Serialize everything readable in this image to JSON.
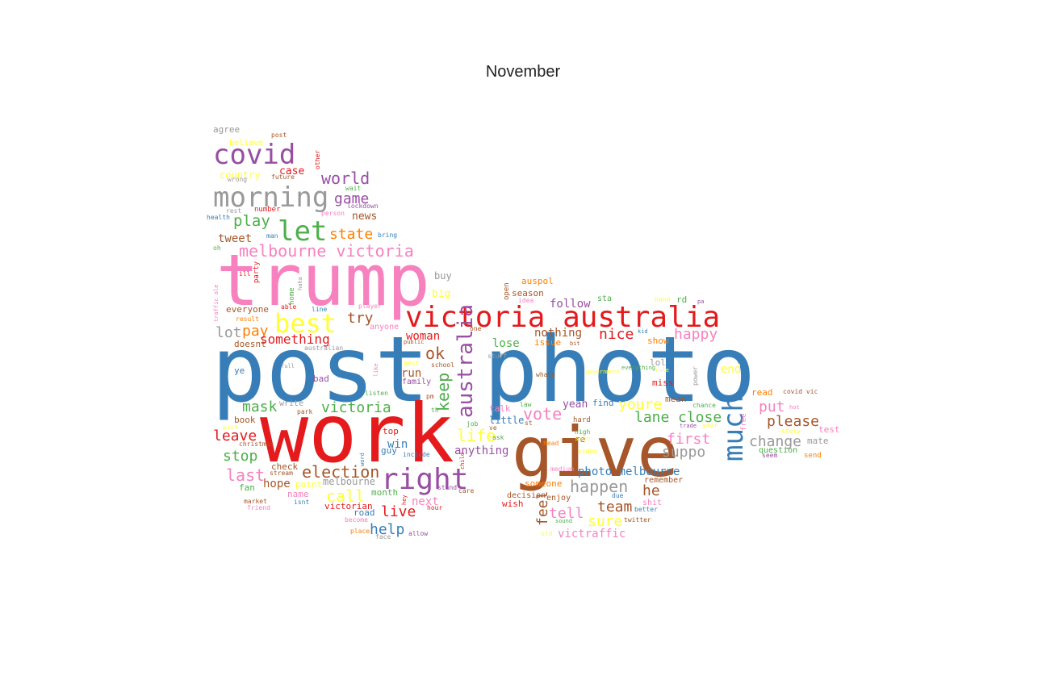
{
  "title": "November",
  "palette": {
    "red": "#e41a1c",
    "blue": "#377eb8",
    "green": "#4daf4a",
    "purple": "#984ea3",
    "orange": "#ff7f00",
    "yellow": "#ffff33",
    "brown": "#a65628",
    "pink": "#f781bf",
    "gray": "#999999"
  },
  "words": [
    {
      "text": "post photo",
      "color": "blue",
      "weight": 100
    },
    {
      "text": "trump",
      "color": "pink",
      "weight": 90
    },
    {
      "text": "work",
      "color": "red",
      "weight": 90
    },
    {
      "text": "give",
      "color": "brown",
      "weight": 80
    },
    {
      "text": "victoria australia",
      "color": "red",
      "weight": 45
    },
    {
      "text": "best",
      "color": "yellow",
      "weight": 40
    },
    {
      "text": "right",
      "color": "purple",
      "weight": 40
    },
    {
      "text": "covid",
      "color": "purple",
      "weight": 40
    },
    {
      "text": "morning",
      "color": "gray",
      "weight": 40
    },
    {
      "text": "let",
      "color": "green",
      "weight": 38
    },
    {
      "text": "much",
      "color": "blue",
      "weight": 36
    },
    {
      "text": "australia",
      "color": "purple",
      "weight": 26
    },
    {
      "text": "melbourne victoria",
      "color": "pink",
      "weight": 20
    },
    {
      "text": "world",
      "color": "purple",
      "weight": 20
    },
    {
      "text": "state",
      "color": "orange",
      "weight": 20
    },
    {
      "text": "play",
      "color": "green",
      "weight": 20
    },
    {
      "text": "game",
      "color": "purple",
      "weight": 18
    },
    {
      "text": "happen",
      "color": "gray",
      "weight": 20
    },
    {
      "text": "election",
      "color": "brown",
      "weight": 20
    },
    {
      "text": "call",
      "color": "yellow",
      "weight": 20
    },
    {
      "text": "victoria",
      "color": "green",
      "weight": 18
    },
    {
      "text": "mask",
      "color": "green",
      "weight": 18
    },
    {
      "text": "leave",
      "color": "red",
      "weight": 18
    },
    {
      "text": "stop",
      "color": "green",
      "weight": 18
    },
    {
      "text": "last",
      "color": "pink",
      "weight": 20
    },
    {
      "text": "try",
      "color": "brown",
      "weight": 18
    },
    {
      "text": "lot",
      "color": "gray",
      "weight": 18
    },
    {
      "text": "pay",
      "color": "orange",
      "weight": 18
    },
    {
      "text": "something",
      "color": "red",
      "weight": 16
    },
    {
      "text": "ok",
      "color": "brown",
      "weight": 20
    },
    {
      "text": "keep",
      "color": "green",
      "weight": 20
    },
    {
      "text": "life",
      "color": "yellow",
      "weight": 20
    },
    {
      "text": "vote",
      "color": "pink",
      "weight": 20
    },
    {
      "text": "close",
      "color": "green",
      "weight": 18
    },
    {
      "text": "lane",
      "color": "green",
      "weight": 18
    },
    {
      "text": "first",
      "color": "pink",
      "weight": 18
    },
    {
      "text": "please",
      "color": "brown",
      "weight": 18
    },
    {
      "text": "change",
      "color": "gray",
      "weight": 18
    },
    {
      "text": "put",
      "color": "pink",
      "weight": 18
    },
    {
      "text": "nice",
      "color": "red",
      "weight": 18
    },
    {
      "text": "happy",
      "color": "pink",
      "weight": 18
    },
    {
      "text": "youre",
      "color": "yellow",
      "weight": 18
    },
    {
      "text": "suppo",
      "color": "gray",
      "weight": 18
    },
    {
      "text": "tell",
      "color": "pink",
      "weight": 18
    },
    {
      "text": "team",
      "color": "brown",
      "weight": 18
    },
    {
      "text": "sure",
      "color": "yellow",
      "weight": 18
    },
    {
      "text": "feel",
      "color": "brown",
      "weight": 18
    },
    {
      "text": "help",
      "color": "blue",
      "weight": 18
    },
    {
      "text": "live",
      "color": "red",
      "weight": 18
    },
    {
      "text": "hope",
      "color": "brown",
      "weight": 14
    },
    {
      "text": "he",
      "color": "brown",
      "weight": 18
    },
    {
      "text": "photo melbourne",
      "color": "blue",
      "weight": 14
    },
    {
      "text": "follow",
      "color": "purple",
      "weight": 14
    },
    {
      "text": "nothing",
      "color": "brown",
      "weight": 14
    },
    {
      "text": "lose",
      "color": "green",
      "weight": 14
    },
    {
      "text": "woman",
      "color": "red",
      "weight": 14
    },
    {
      "text": "run",
      "color": "brown",
      "weight": 14
    },
    {
      "text": "anything",
      "color": "purple",
      "weight": 14
    },
    {
      "text": "victraffic",
      "color": "pink",
      "weight": 14
    },
    {
      "text": "win",
      "color": "blue",
      "weight": 14
    },
    {
      "text": "next",
      "color": "pink",
      "weight": 14
    },
    {
      "text": "tweet",
      "color": "brown",
      "weight": 14
    },
    {
      "text": "news",
      "color": "brown",
      "weight": 13
    },
    {
      "text": "agree",
      "color": "gray",
      "weight": 11
    },
    {
      "text": "believe",
      "color": "yellow",
      "weight": 10
    },
    {
      "text": "country",
      "color": "yellow",
      "weight": 12
    },
    {
      "text": "case",
      "color": "red",
      "weight": 13
    },
    {
      "text": "end",
      "color": "yellow",
      "weight": 14
    },
    {
      "text": "yeah",
      "color": "purple",
      "weight": 13
    },
    {
      "text": "little",
      "color": "blue",
      "weight": 12
    },
    {
      "text": "buy",
      "color": "gray",
      "weight": 12
    },
    {
      "text": "big",
      "color": "yellow",
      "weight": 13
    },
    {
      "text": "auspol",
      "color": "orange",
      "weight": 11
    },
    {
      "text": "season",
      "color": "brown",
      "weight": 11
    },
    {
      "text": "everyone",
      "color": "brown",
      "weight": 11
    },
    {
      "text": "doesnt",
      "color": "brown",
      "weight": 11
    },
    {
      "text": "book",
      "color": "brown",
      "weight": 11
    },
    {
      "text": "fan",
      "color": "green",
      "weight": 11
    },
    {
      "text": "melbourne",
      "color": "gray",
      "weight": 12
    },
    {
      "text": "victorian",
      "color": "red",
      "weight": 11
    },
    {
      "text": "road",
      "color": "blue",
      "weight": 11
    },
    {
      "text": "month",
      "color": "green",
      "weight": 11
    },
    {
      "text": "check",
      "color": "brown",
      "weight": 11
    },
    {
      "text": "name",
      "color": "pink",
      "weight": 11
    },
    {
      "text": "point",
      "color": "yellow",
      "weight": 11
    },
    {
      "text": "read",
      "color": "orange",
      "weight": 11
    },
    {
      "text": "mate",
      "color": "gray",
      "weight": 11
    },
    {
      "text": "test",
      "color": "pink",
      "weight": 11
    },
    {
      "text": "send",
      "color": "orange",
      "weight": 9
    },
    {
      "text": "remember",
      "color": "brown",
      "weight": 10
    },
    {
      "text": "shit",
      "color": "pink",
      "weight": 10
    },
    {
      "text": "someone",
      "color": "orange",
      "weight": 11
    },
    {
      "text": "wish",
      "color": "red",
      "weight": 11
    },
    {
      "text": "miss",
      "color": "red",
      "weight": 11
    },
    {
      "text": "find",
      "color": "blue",
      "weight": 11
    },
    {
      "text": "re",
      "color": "brown",
      "weight": 11
    },
    {
      "text": "mean",
      "color": "brown",
      "weight": 11
    },
    {
      "text": "lol",
      "color": "gray",
      "weight": 11
    },
    {
      "text": "rd",
      "color": "green",
      "weight": 11
    },
    {
      "text": "sta",
      "color": "green",
      "weight": 10
    },
    {
      "text": "issue",
      "color": "orange",
      "weight": 11
    },
    {
      "text": "show",
      "color": "orange",
      "weight": 11
    },
    {
      "text": "family",
      "color": "purple",
      "weight": 10
    },
    {
      "text": "guy",
      "color": "blue",
      "weight": 11
    },
    {
      "text": "bad",
      "color": "purple",
      "weight": 11
    },
    {
      "text": "ye",
      "color": "blue",
      "weight": 11
    },
    {
      "text": "talk",
      "color": "pink",
      "weight": 11
    },
    {
      "text": "post",
      "color": "brown",
      "weight": 8
    },
    {
      "text": "other",
      "color": "red",
      "weight": 8
    },
    {
      "text": "future",
      "color": "brown",
      "weight": 8
    },
    {
      "text": "wrong",
      "color": "gray",
      "weight": 8
    },
    {
      "text": "wait",
      "color": "green",
      "weight": 8
    },
    {
      "text": "lockdown",
      "color": "purple",
      "weight": 8
    },
    {
      "text": "rest",
      "color": "gray",
      "weight": 8
    },
    {
      "text": "number",
      "color": "red",
      "weight": 9
    },
    {
      "text": "person",
      "color": "pink",
      "weight": 8
    },
    {
      "text": "health",
      "color": "blue",
      "weight": 8
    },
    {
      "text": "man",
      "color": "blue",
      "weight": 8
    },
    {
      "text": "bring",
      "color": "blue",
      "weight": 8
    },
    {
      "text": "oh",
      "color": "green",
      "weight": 8
    },
    {
      "text": "ill",
      "color": "red",
      "weight": 8
    },
    {
      "text": "party",
      "color": "red",
      "weight": 9
    },
    {
      "text": "haha",
      "color": "gray",
      "weight": 7
    },
    {
      "text": "home",
      "color": "green",
      "weight": 9
    },
    {
      "text": "traffic ale",
      "color": "pink",
      "weight": 7
    },
    {
      "text": "able",
      "color": "red",
      "weight": 8
    },
    {
      "text": "line",
      "color": "blue",
      "weight": 8
    },
    {
      "text": "player",
      "color": "pink",
      "weight": 8
    },
    {
      "text": "result",
      "color": "orange",
      "weight": 8
    },
    {
      "text": "anyone",
      "color": "pink",
      "weight": 10
    },
    {
      "text": "australian",
      "color": "gray",
      "weight": 10
    },
    {
      "text": "like",
      "color": "pink",
      "weight": 8
    },
    {
      "text": "full",
      "color": "gray",
      "weight": 7
    },
    {
      "text": "open",
      "color": "brown",
      "weight": 7
    },
    {
      "text": "idea",
      "color": "pink",
      "weight": 9
    },
    {
      "text": "one",
      "color": "brown",
      "weight": 8
    },
    {
      "text": "public",
      "color": "brown",
      "weight": 8
    },
    {
      "text": "best",
      "color": "yellow",
      "weight": 7
    },
    {
      "text": "school",
      "color": "brown",
      "weight": 8
    },
    {
      "text": "listen",
      "color": "green",
      "weight": 8
    },
    {
      "text": "pm",
      "color": "brown",
      "weight": 8
    },
    {
      "text": "th",
      "color": "green",
      "weight": 8
    },
    {
      "text": "park",
      "color": "brown",
      "weight": 8
    },
    {
      "text": "write",
      "color": "gray",
      "weight": 8
    },
    {
      "text": "pick",
      "color": "yellow",
      "weight": 10
    },
    {
      "text": "christmas",
      "color": "brown",
      "weight": 8
    },
    {
      "text": "stream",
      "color": "brown",
      "weight": 8
    },
    {
      "text": "market",
      "color": "brown",
      "weight": 8
    },
    {
      "text": "friend",
      "color": "pink",
      "weight": 8
    },
    {
      "text": "isnt",
      "color": "blue",
      "weight": 8
    },
    {
      "text": "become",
      "color": "pink",
      "weight": 8
    },
    {
      "text": "place",
      "color": "orange",
      "weight": 8
    },
    {
      "text": "face",
      "color": "gray",
      "weight": 8
    },
    {
      "text": "allow",
      "color": "purple",
      "weight": 8
    },
    {
      "text": "hour",
      "color": "red",
      "weight": 8
    },
    {
      "text": "stand",
      "color": "purple",
      "weight": 8
    },
    {
      "text": "care",
      "color": "brown",
      "weight": 8
    },
    {
      "text": "hey",
      "color": "red",
      "weight": 8
    },
    {
      "text": "word",
      "color": "blue",
      "weight": 7
    },
    {
      "text": "include",
      "color": "blue",
      "weight": 7
    },
    {
      "text": "top",
      "color": "red",
      "weight": 8
    },
    {
      "text": "job",
      "color": "green",
      "weight": 8
    },
    {
      "text": "ve",
      "color": "brown",
      "weight": 11
    },
    {
      "text": "ask",
      "color": "green",
      "weight": 8
    },
    {
      "text": "child",
      "color": "red",
      "weight": 8
    },
    {
      "text": "stuff",
      "color": "gray",
      "weight": 8
    },
    {
      "text": "law",
      "color": "green",
      "weight": 7
    },
    {
      "text": "st",
      "color": "brown",
      "weight": 8
    },
    {
      "text": "head",
      "color": "orange",
      "weight": 8
    },
    {
      "text": "decision",
      "color": "brown",
      "weight": 8
    },
    {
      "text": "enjoy",
      "color": "brown",
      "weight": 8
    },
    {
      "text": "old",
      "color": "yellow",
      "weight": 10
    },
    {
      "text": "medium",
      "color": "pink",
      "weight": 10
    },
    {
      "text": "due",
      "color": "blue",
      "weight": 8
    },
    {
      "text": "better",
      "color": "blue",
      "weight": 8
    },
    {
      "text": "twitter",
      "color": "brown",
      "weight": 8
    },
    {
      "text": "sound",
      "color": "green",
      "weight": 8
    },
    {
      "text": "hard",
      "color": "brown",
      "weight": 8
    },
    {
      "text": "video",
      "color": "yellow",
      "weight": 7
    },
    {
      "text": "government",
      "color": "yellow",
      "weight": 9
    },
    {
      "text": "soon",
      "color": "yellow",
      "weight": 8
    },
    {
      "text": "whats",
      "color": "brown",
      "weight": 7
    },
    {
      "text": "high",
      "color": "green",
      "weight": 8
    },
    {
      "text": "bit",
      "color": "brown",
      "weight": 8
    },
    {
      "text": "everything",
      "color": "green",
      "weight": 7
    },
    {
      "text": "rule",
      "color": "yellow",
      "weight": 7
    },
    {
      "text": "power",
      "color": "gray",
      "weight": 7
    },
    {
      "text": "kid",
      "color": "blue",
      "weight": 8
    },
    {
      "text": "chance",
      "color": "green",
      "weight": 7
    },
    {
      "text": "trade",
      "color": "purple",
      "weight": 8
    },
    {
      "text": "year",
      "color": "yellow",
      "weight": 7
    },
    {
      "text": "hand",
      "color": "yellow",
      "weight": 8
    },
    {
      "text": "pa",
      "color": "purple",
      "weight": 8
    },
    {
      "text": "free",
      "color": "pink",
      "weight": 7
    },
    {
      "text": "covid vic",
      "color": "brown",
      "weight": 9
    },
    {
      "text": "hot",
      "color": "pink",
      "weight": 8
    },
    {
      "text": "story",
      "color": "yellow",
      "weight": 7
    },
    {
      "text": "question",
      "color": "green",
      "weight": 8
    },
    {
      "text": "seem",
      "color": "purple",
      "weight": 10
    },
    {
      "text": "beautiful",
      "color": "purple",
      "weight": 8
    }
  ]
}
